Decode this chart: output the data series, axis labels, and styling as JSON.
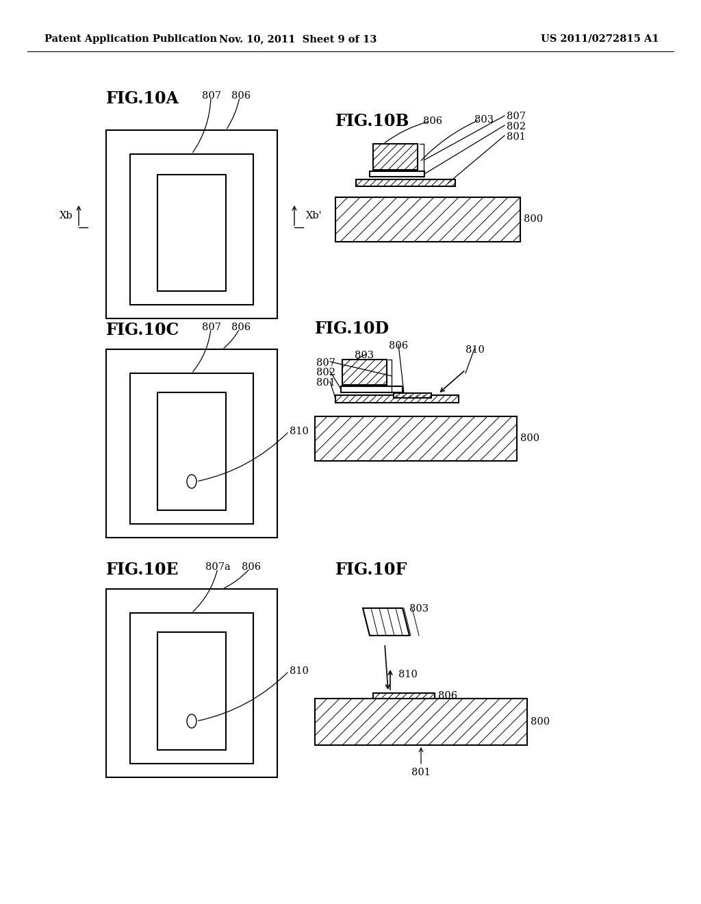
{
  "header_left": "Patent Application Publication",
  "header_mid": "Nov. 10, 2011  Sheet 9 of 13",
  "header_right": "US 2011/0272815 A1",
  "bg_color": "#ffffff",
  "lw": 1.5,
  "fs_label": 17,
  "fs_ann": 10.5,
  "fs_hdr": 10.5,
  "hatch_lw": 0.7,
  "hatch_step": 18
}
